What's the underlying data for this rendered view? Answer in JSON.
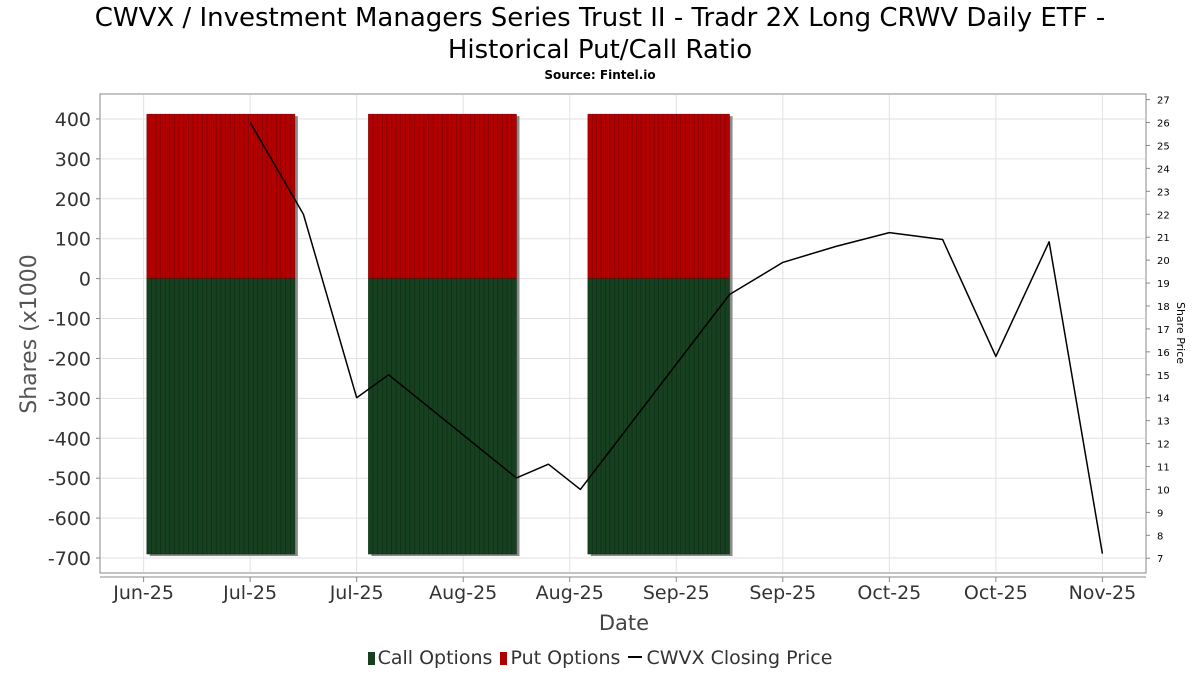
{
  "title_line1": "CWVX / Investment Managers Series Trust II - Tradr 2X Long CRWV Daily ETF -",
  "title_line2": "Historical Put/Call Ratio",
  "subtitle": "Source: Fintel.io",
  "colors": {
    "call": "#164020",
    "put": "#b00000",
    "price": "#000000",
    "grid": "#e2e2e2",
    "bar_shadow": "#8a8a8a"
  },
  "chart_data": {
    "type": "bar",
    "title": "CWVX / Investment Managers Series Trust II - Tradr 2X Long CRWV Daily ETF - Historical Put/Call Ratio",
    "xlabel": "Date",
    "ylabel": "Shares (x1000",
    "y2label": "Share Price",
    "ylim": [
      -735,
      460
    ],
    "y2lim": [
      6.4,
      27.2
    ],
    "yticks": [
      400,
      300,
      200,
      100,
      0,
      -100,
      -200,
      -300,
      -400,
      -500,
      -600,
      -700
    ],
    "y2ticks": [
      27,
      26,
      25,
      24,
      23,
      22,
      21,
      20,
      19,
      18,
      17,
      16,
      15,
      14,
      13,
      12,
      11,
      10,
      9,
      8,
      7
    ],
    "x_range": [
      -0.4,
      9.4
    ],
    "x_tick_labels": [
      "Jun-25",
      "Jul-25",
      "Jul-25",
      "Aug-25",
      "Aug-25",
      "Sep-25",
      "Sep-25",
      "Oct-25",
      "Oct-25",
      "Nov-25"
    ],
    "x_tick_positions": [
      0,
      1,
      2,
      3,
      4,
      5,
      6,
      7,
      8,
      9
    ],
    "grid": true,
    "legend_position": "bottom",
    "bar_groups": [
      {
        "x_start": 0.03,
        "x_end": 1.42,
        "call": -690,
        "put": 412
      },
      {
        "x_start": 2.11,
        "x_end": 3.5,
        "call": -690,
        "put": 412
      },
      {
        "x_start": 4.17,
        "x_end": 5.5,
        "call": -690,
        "put": 412
      }
    ],
    "series": [
      {
        "name": "Call Options",
        "type": "bar"
      },
      {
        "name": "Put Options",
        "type": "bar"
      },
      {
        "name": "CWVX Closing Price",
        "type": "line",
        "x": [
          1.0,
          1.5,
          2.0,
          2.3,
          3.5,
          3.8,
          4.1,
          5.5,
          6.0,
          6.5,
          7.0,
          7.5,
          8.0,
          8.5,
          9.0
        ],
        "values": [
          26.0,
          22.0,
          14.0,
          15.0,
          10.5,
          11.1,
          10.0,
          18.5,
          19.9,
          20.6,
          21.2,
          20.9,
          15.8,
          20.8,
          7.2
        ]
      }
    ]
  }
}
